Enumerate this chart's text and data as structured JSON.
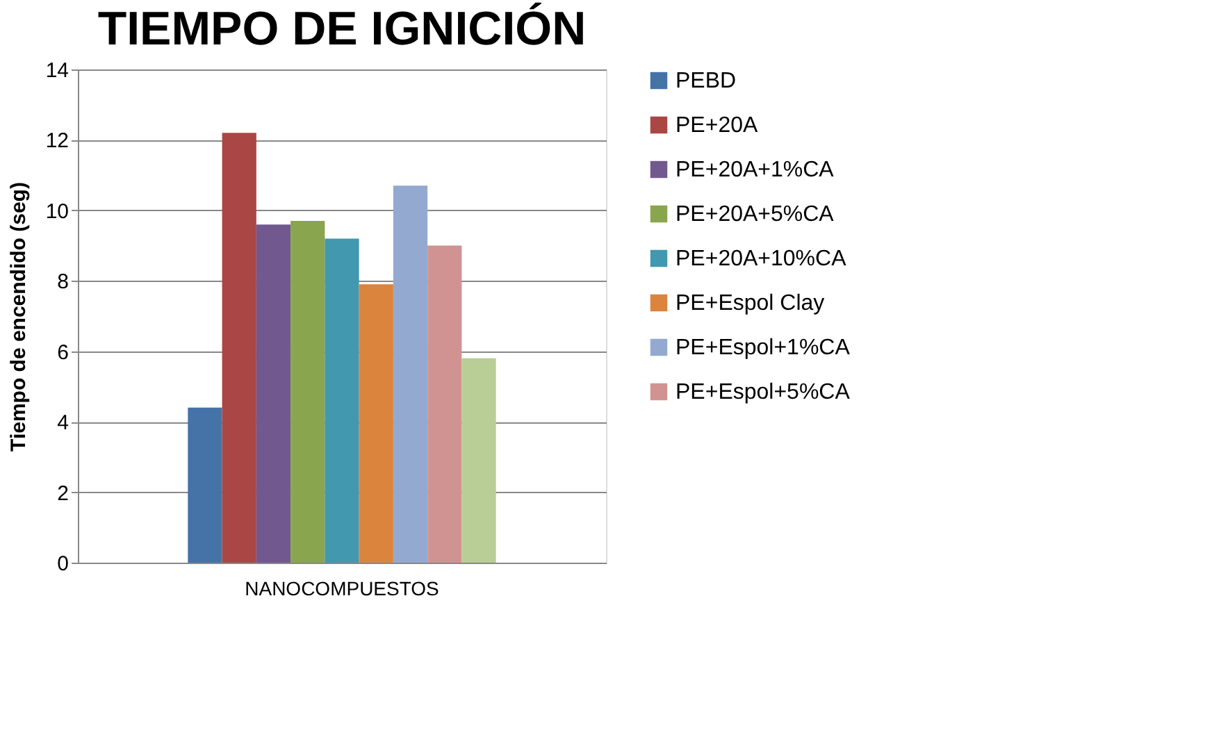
{
  "chart_data": {
    "type": "bar",
    "title": "TIEMPO DE IGNICIÓN",
    "ylabel": "Tiempo de encendido (seg)",
    "categories": [
      "NANOCOMPUESTOS"
    ],
    "series": [
      {
        "name": "PEBD",
        "color": "#4572a7",
        "values": [
          4.4
        ]
      },
      {
        "name": "PE+20A",
        "color": "#aa4643",
        "values": [
          12.2
        ]
      },
      {
        "name": "PE+20A+1%CA",
        "color": "#71588f",
        "values": [
          9.6
        ]
      },
      {
        "name": "PE+20A+5%CA",
        "color": "#89a54e",
        "values": [
          9.7
        ]
      },
      {
        "name": "PE+20A+10%CA",
        "color": "#4198af",
        "values": [
          9.2
        ]
      },
      {
        "name": "PE+Espol Clay",
        "color": "#db843d",
        "values": [
          7.9
        ]
      },
      {
        "name": "PE+Espol+1%CA",
        "color": "#93a9cf",
        "values": [
          10.7
        ]
      },
      {
        "name": "PE+Espol+5%CA",
        "color": "#d19392",
        "values": [
          9.0
        ]
      },
      {
        "color": "#b9cd96",
        "values": [
          5.8
        ]
      }
    ],
    "ylim": [
      0,
      14
    ],
    "yticks": [
      0,
      2,
      4,
      6,
      8,
      10,
      12,
      14
    ],
    "grid": "y",
    "legend": "right"
  }
}
